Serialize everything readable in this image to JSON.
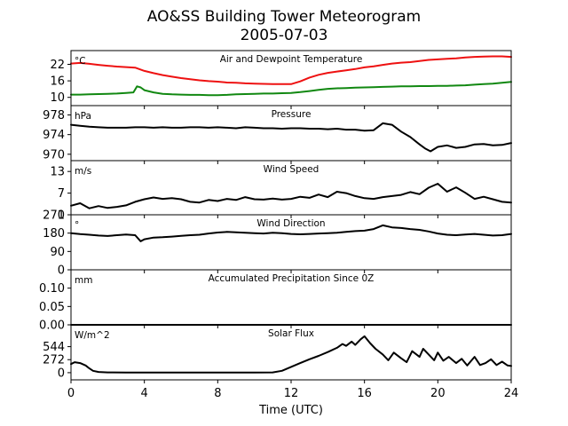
{
  "chart_data": {
    "type": "line",
    "title": "AO&SS Building Tower Meteorogram",
    "subtitle": "2005-07-03",
    "xlabel": "Time (UTC)",
    "xlim": [
      0,
      24
    ],
    "xticks": [
      "0",
      "4",
      "8",
      "12",
      "16",
      "20",
      "24"
    ],
    "panels": [
      {
        "key": "temp",
        "title": "Air and Dewpoint Temperature",
        "unit": "°C",
        "ylim": [
          7,
          27
        ],
        "yticks": [
          10,
          16,
          22
        ],
        "series": [
          {
            "color": "#ee1111",
            "x": [
              0,
              0.5,
              1,
              1.5,
              2,
              2.5,
              3,
              3.5,
              4,
              4.5,
              5,
              5.5,
              6,
              6.5,
              7,
              7.5,
              8,
              8.5,
              9,
              9.5,
              10,
              10.5,
              11,
              11.5,
              12,
              12.5,
              13,
              13.5,
              14,
              14.5,
              15,
              15.5,
              16,
              16.5,
              17,
              17.5,
              18,
              18.5,
              19,
              19.5,
              20,
              20.5,
              21,
              21.5,
              22,
              22.5,
              23,
              23.5,
              24
            ],
            "values": [
              22.3,
              22.5,
              22.2,
              21.8,
              21.5,
              21.2,
              21.0,
              20.8,
              19.6,
              18.8,
              18.1,
              17.5,
              17.0,
              16.6,
              16.2,
              15.9,
              15.7,
              15.4,
              15.3,
              15.1,
              15.0,
              14.9,
              14.8,
              14.8,
              14.8,
              15.8,
              17.2,
              18.2,
              18.9,
              19.4,
              19.8,
              20.3,
              20.9,
              21.3,
              21.8,
              22.3,
              22.6,
              22.8,
              23.2,
              23.6,
              23.8,
              24.0,
              24.2,
              24.5,
              24.7,
              24.8,
              24.9,
              24.9,
              24.7
            ]
          },
          {
            "color": "#118811",
            "x": [
              0,
              0.5,
              1,
              1.5,
              2,
              2.5,
              3,
              3.4,
              3.6,
              3.8,
              4,
              4.5,
              5,
              5.5,
              6,
              6.5,
              7,
              7.5,
              8,
              8.5,
              9,
              9.5,
              10,
              10.5,
              11,
              11.5,
              12,
              12.5,
              13,
              13.5,
              14,
              14.5,
              15,
              15.5,
              16,
              16.5,
              17,
              17.5,
              18,
              18.5,
              19,
              19.5,
              20,
              20.5,
              21,
              21.5,
              22,
              22.5,
              23,
              23.5,
              24
            ],
            "values": [
              11.0,
              11.0,
              11.1,
              11.2,
              11.3,
              11.4,
              11.6,
              11.8,
              14.0,
              13.6,
              12.6,
              11.8,
              11.3,
              11.1,
              11.0,
              10.9,
              10.9,
              10.8,
              10.8,
              10.9,
              11.1,
              11.2,
              11.3,
              11.4,
              11.4,
              11.5,
              11.6,
              11.9,
              12.3,
              12.7,
              13.1,
              13.3,
              13.4,
              13.5,
              13.6,
              13.7,
              13.8,
              13.9,
              14.0,
              14.0,
              14.1,
              14.1,
              14.2,
              14.2,
              14.3,
              14.4,
              14.6,
              14.8,
              15.0,
              15.3,
              15.6
            ]
          }
        ]
      },
      {
        "key": "pressure",
        "title": "Pressure",
        "unit": "hPa",
        "ylim": [
          968.7,
          979.9
        ],
        "yticks": [
          970,
          974,
          978
        ],
        "series": [
          {
            "color": "#000000",
            "x": [
              0,
              0.5,
              1,
              1.5,
              2,
              2.5,
              3,
              3.5,
              4,
              4.5,
              5,
              5.5,
              6,
              6.5,
              7,
              7.5,
              8,
              8.5,
              9,
              9.5,
              10,
              10.5,
              11,
              11.5,
              12,
              12.5,
              13,
              13.5,
              14,
              14.5,
              15,
              15.5,
              16,
              16.5,
              17,
              17.5,
              18,
              18.5,
              19,
              19.3,
              19.6,
              20,
              20.5,
              21,
              21.5,
              22,
              22.5,
              23,
              23.5,
              24
            ],
            "values": [
              976.0,
              975.8,
              975.6,
              975.5,
              975.4,
              975.4,
              975.4,
              975.5,
              975.5,
              975.4,
              975.5,
              975.4,
              975.4,
              975.5,
              975.5,
              975.4,
              975.5,
              975.4,
              975.3,
              975.5,
              975.4,
              975.3,
              975.3,
              975.2,
              975.3,
              975.3,
              975.2,
              975.2,
              975.1,
              975.2,
              975.0,
              975.0,
              974.8,
              974.9,
              976.3,
              976.0,
              974.6,
              973.5,
              972.0,
              971.2,
              970.6,
              971.5,
              971.8,
              971.3,
              971.5,
              972.0,
              972.1,
              971.8,
              971.9,
              972.3
            ]
          }
        ]
      },
      {
        "key": "wspd",
        "title": "Wind Speed",
        "unit": "m/s",
        "ylim": [
          1,
          16
        ],
        "yticks": [
          1,
          7,
          13
        ],
        "series": [
          {
            "color": "#000000",
            "x": [
              0,
              0.5,
              1,
              1.5,
              2,
              2.5,
              3,
              3.5,
              4,
              4.5,
              5,
              5.5,
              6,
              6.5,
              7,
              7.5,
              8,
              8.5,
              9,
              9.5,
              10,
              10.5,
              11,
              11.5,
              12,
              12.5,
              13,
              13.5,
              14,
              14.5,
              15,
              15.5,
              16,
              16.5,
              17,
              17.5,
              18,
              18.5,
              19,
              19.5,
              20,
              20.5,
              21,
              21.5,
              22,
              22.5,
              23,
              23.5,
              24
            ],
            "values": [
              3.5,
              4.2,
              2.8,
              3.4,
              2.9,
              3.2,
              3.6,
              4.6,
              5.3,
              5.8,
              5.4,
              5.6,
              5.3,
              4.6,
              4.4,
              5.1,
              4.8,
              5.4,
              5.1,
              5.9,
              5.3,
              5.2,
              5.5,
              5.2,
              5.4,
              6.0,
              5.7,
              6.6,
              5.9,
              7.4,
              7.0,
              6.2,
              5.6,
              5.4,
              5.9,
              6.2,
              6.5,
              7.3,
              6.7,
              8.5,
              9.6,
              7.4,
              8.6,
              7.1,
              5.4,
              6.0,
              5.3,
              4.6,
              4.4
            ]
          }
        ]
      },
      {
        "key": "wdir",
        "title": "Wind Direction",
        "unit": "°",
        "ylim": [
          0,
          270
        ],
        "yticks": [
          0,
          90,
          180,
          270
        ],
        "series": [
          {
            "color": "#000000",
            "x": [
              0,
              0.5,
              1,
              1.5,
              2,
              2.5,
              3,
              3.5,
              3.8,
              4,
              4.5,
              5,
              5.5,
              6,
              6.5,
              7,
              7.5,
              8,
              8.5,
              9,
              9.5,
              10,
              10.5,
              11,
              11.5,
              12,
              12.5,
              13,
              13.5,
              14,
              14.5,
              15,
              15.5,
              16,
              16.5,
              17,
              17.5,
              18,
              18.5,
              19,
              19.5,
              20,
              20.5,
              21,
              21.5,
              22,
              22.5,
              23,
              23.5,
              24
            ],
            "values": [
              180,
              175,
              172,
              168,
              166,
              170,
              173,
              170,
              140,
              150,
              158,
              160,
              163,
              167,
              170,
              172,
              178,
              183,
              186,
              184,
              182,
              180,
              178,
              182,
              180,
              176,
              174,
              176,
              178,
              180,
              182,
              186,
              190,
              192,
              200,
              218,
              208,
              205,
              200,
              196,
              188,
              178,
              172,
              170,
              173,
              176,
              172,
              168,
              170,
              176
            ]
          }
        ]
      },
      {
        "key": "precip",
        "title": "Accumulated Precipitation Since 0Z",
        "unit": "mm",
        "ylim": [
          0,
          0.15
        ],
        "yticks": [
          0.0,
          0.05,
          0.1
        ],
        "ytick_labels": [
          "0.00",
          "0.05",
          "0.10"
        ],
        "series": [
          {
            "color": "#000000",
            "x": [
              0,
              24
            ],
            "values": [
              0,
              0
            ]
          }
        ]
      },
      {
        "key": "solar",
        "title": "Solar Flux",
        "unit": "W/m^2",
        "ylim": [
          -150,
          1000
        ],
        "yticks": [
          0,
          272,
          544
        ],
        "series": [
          {
            "color": "#000000",
            "x": [
              0,
              0.2,
              0.5,
              0.8,
              1.0,
              1.2,
              1.5,
              2,
              3,
              4,
              5,
              6,
              7,
              8,
              9,
              10,
              11,
              11.5,
              12,
              12.5,
              13,
              13.5,
              14,
              14.5,
              14.8,
              15,
              15.3,
              15.5,
              15.8,
              16,
              16.3,
              16.6,
              17,
              17.3,
              17.6,
              18,
              18.3,
              18.6,
              19,
              19.2,
              19.5,
              19.8,
              20,
              20.3,
              20.6,
              21,
              21.3,
              21.6,
              22,
              22.3,
              22.6,
              22.9,
              23.2,
              23.5,
              23.8,
              24
            ],
            "values": [
              180,
              220,
              200,
              150,
              90,
              40,
              15,
              5,
              3,
              3,
              3,
              3,
              3,
              3,
              3,
              3,
              5,
              40,
              120,
              200,
              280,
              350,
              430,
              520,
              600,
              560,
              650,
              580,
              700,
              760,
              620,
              500,
              380,
              260,
              420,
              300,
              220,
              450,
              330,
              500,
              380,
              260,
              420,
              250,
              330,
              200,
              290,
              150,
              330,
              160,
              200,
              280,
              160,
              230,
              150,
              140
            ]
          }
        ]
      }
    ]
  }
}
